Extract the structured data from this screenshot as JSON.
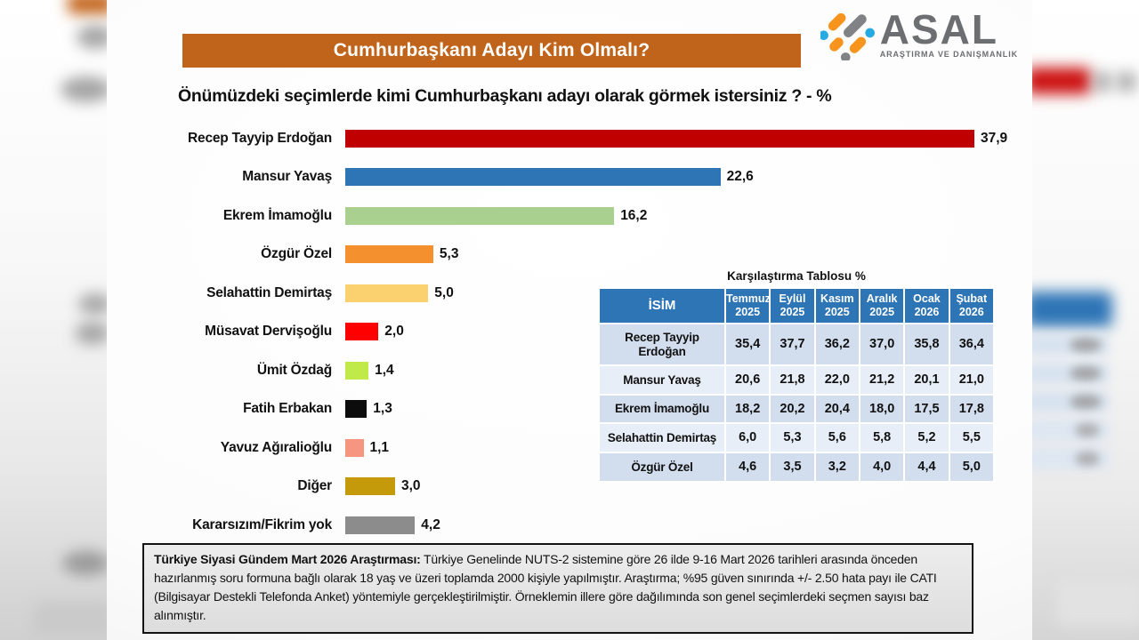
{
  "header": {
    "title": "Cumhurbaşkanı Adayı Kim Olmalı?",
    "banner_color": "#C1641B",
    "subtitle": "Önümüzdeki seçimlerde kimi Cumhurbaşkanı adayı olarak görmek istersiniz ? - %",
    "logo": {
      "text": "ASAL",
      "tagline": "ARAŞTIRMA VE DANIŞMANLIK",
      "icon": "asal-diagonal-dots-logo",
      "icon_colors": {
        "orange": "#F7941E",
        "blue": "#27AAE1",
        "gray": "#808285"
      }
    }
  },
  "chart_data": {
    "type": "bar",
    "orientation": "horizontal",
    "title": "Önümüzdeki seçimlerde kimi Cumhurbaşkanı adayı olarak görmek istersiniz ? - %",
    "unit": "%",
    "xlim": [
      0,
      40
    ],
    "grid": false,
    "categories": [
      "Recep Tayyip Erdoğan",
      "Mansur Yavaş",
      "Ekrem İmamoğlu",
      "Özgür Özel",
      "Selahattin Demirtaş",
      "Müsavat Dervişoğlu",
      "Ümit Özdağ",
      "Fatih Erbakan",
      "Yavuz Ağıralioğlu",
      "Diğer",
      "Kararsızım/Fikrim yok"
    ],
    "values": [
      37.9,
      22.6,
      16.2,
      5.3,
      5.0,
      2.0,
      1.4,
      1.3,
      1.1,
      3.0,
      4.2
    ],
    "value_labels": [
      "37,9",
      "22,6",
      "16,2",
      "5,3",
      "5,0",
      "2,0",
      "1,4",
      "1,3",
      "1,1",
      "3,0",
      "4,2"
    ],
    "colors": [
      "#C00000",
      "#2E75B6",
      "#A9D08E",
      "#F5902F",
      "#FAD16E",
      "#FE0000",
      "#C0EA49",
      "#0C0C0C",
      "#F79680",
      "#C49A0B",
      "#8C8C8C"
    ]
  },
  "comparison_table": {
    "title": "Karşılaştırma Tablosu %",
    "header_bg": "#2E75B6",
    "row_colors": [
      "#D2DEEE",
      "#E8EEF7"
    ],
    "columns": [
      "İSİM",
      "Temmuz 2025",
      "Eylül 2025",
      "Kasım 2025",
      "Aralık 2025",
      "Ocak 2026",
      "Şubat 2026"
    ],
    "rows": [
      {
        "name": "Recep Tayyip Erdoğan",
        "values": [
          "35,4",
          "37,7",
          "36,2",
          "37,0",
          "35,8",
          "36,4"
        ]
      },
      {
        "name": "Mansur Yavaş",
        "values": [
          "20,6",
          "21,8",
          "22,0",
          "21,2",
          "20,1",
          "21,0"
        ]
      },
      {
        "name": "Ekrem İmamoğlu",
        "values": [
          "18,2",
          "20,2",
          "20,4",
          "18,0",
          "17,5",
          "17,8"
        ]
      },
      {
        "name": "Selahattin Demirtaş",
        "values": [
          "6,0",
          "5,3",
          "5,6",
          "5,8",
          "5,2",
          "5,5"
        ]
      },
      {
        "name": "Özgür Özel",
        "values": [
          "4,6",
          "3,5",
          "3,2",
          "4,0",
          "4,4",
          "5,0"
        ]
      }
    ]
  },
  "footnote": {
    "lead": "Türkiye Siyasi Gündem Mart 2026 Araştırması:",
    "text": "Türkiye Genelinde NUTS-2 sistemine göre 26 ilde 9-16 Mart 2026 tarihleri arasında önceden hazırlanmış soru formuna bağlı olarak 18 yaş ve üzeri toplamda 2000 kişiyle yapılmıştır. Araştırma; %95 güven sınırında +/- 2.50 hata payı ile CATI (Bilgisayar Destekli Telefonda Anket) yöntemiyle gerçekleştirilmiştir. Örneklemin illere göre dağılımında son genel seçimlerdeki seçmen sayısı baz alınmıştır."
  }
}
